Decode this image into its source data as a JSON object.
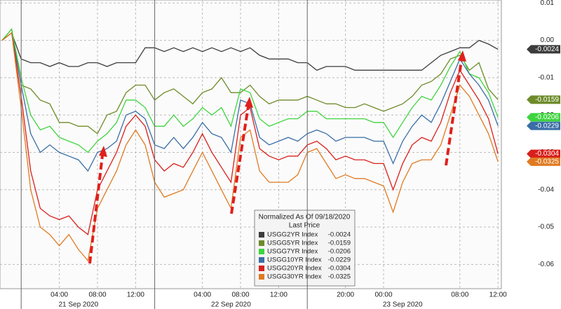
{
  "chart_data": {
    "type": "line",
    "categories": [
      null,
      null,
      null,
      null,
      null,
      null,
      "04:00",
      null,
      null,
      null,
      "08:00",
      null,
      null,
      null,
      "12:00",
      null,
      null,
      null,
      null,
      null,
      null,
      "04:00",
      null,
      null,
      null,
      "08:00",
      null,
      null,
      null,
      "12:00",
      null,
      null,
      null,
      null,
      null,
      null,
      "20:00",
      null,
      null,
      null,
      "00:00",
      null,
      null,
      null,
      null,
      null,
      null,
      null,
      "08:00",
      null,
      null,
      null,
      "12:00"
    ],
    "dates": [
      null,
      null,
      null,
      null,
      null,
      null,
      null,
      null,
      "21 Sep 2020",
      null,
      null,
      null,
      null,
      null,
      null,
      null,
      null,
      null,
      null,
      null,
      null,
      null,
      null,
      null,
      "22 Sep 2020",
      null,
      null,
      null,
      null,
      null,
      null,
      null,
      null,
      null,
      null,
      null,
      null,
      null,
      null,
      null,
      null,
      null,
      "23 Sep 2020",
      null,
      null,
      null,
      null,
      null,
      null,
      null,
      null,
      null,
      null
    ],
    "ylim": [
      -0.0665,
      0.0108
    ],
    "yticks": [
      0.01,
      {
        "value": 0,
        "label": "0.00"
      },
      -0.01,
      -0.02,
      -0.03,
      -0.04,
      -0.05,
      -0.06
    ],
    "grid": true,
    "legend_title": "Normalized As Of 09/18/2020",
    "legend_subtitle": "Last Price",
    "series": [
      {
        "name": "USGG2YR Index",
        "color": "#3c3c3c",
        "values": [
          0,
          0.002,
          -0.005,
          -0.006,
          -0.006,
          -0.007,
          -0.006,
          -0.007,
          -0.007,
          -0.006,
          -0.006,
          -0.007,
          -0.006,
          -0.006,
          -0.006,
          -0.002,
          -0.002,
          -0.003,
          -0.002,
          -0.003,
          -0.002,
          -0.003,
          -0.002,
          -0.003,
          -0.002,
          -0.003,
          -0.002,
          -0.004,
          -0.005,
          -0.005,
          -0.005,
          -0.006,
          -0.006,
          -0.008,
          -0.007,
          -0.007,
          -0.007,
          -0.008,
          -0.008,
          -0.008,
          -0.008,
          -0.008,
          -0.008,
          -0.008,
          -0.008,
          -0.006,
          -0.004,
          -0.003,
          -0.002,
          -0.002,
          0,
          -0.001,
          -0.0024
        ]
      },
      {
        "name": "USGG5YR Index",
        "color": "#6e8b2a",
        "values": [
          0,
          0.003,
          -0.012,
          -0.013,
          -0.016,
          -0.017,
          -0.022,
          -0.022,
          -0.023,
          -0.023,
          -0.025,
          -0.02,
          -0.019,
          -0.014,
          -0.012,
          -0.012,
          -0.016,
          -0.014,
          -0.013,
          -0.015,
          -0.017,
          -0.014,
          -0.013,
          -0.01,
          -0.014,
          -0.014,
          -0.012,
          -0.015,
          -0.017,
          -0.016,
          -0.016,
          -0.016,
          -0.015,
          -0.016,
          -0.017,
          -0.017,
          -0.018,
          -0.018,
          -0.017,
          -0.018,
          -0.019,
          -0.018,
          -0.017,
          -0.015,
          -0.012,
          -0.011,
          -0.009,
          -0.005,
          -0.004,
          -0.008,
          -0.006,
          -0.013,
          -0.0159
        ]
      },
      {
        "name": "USGG7YR Index",
        "color": "#3ed43e",
        "values": [
          0,
          0.003,
          -0.01,
          -0.02,
          -0.024,
          -0.023,
          -0.026,
          -0.027,
          -0.028,
          -0.03,
          -0.027,
          -0.025,
          -0.022,
          -0.016,
          -0.016,
          -0.018,
          -0.023,
          -0.023,
          -0.02,
          -0.023,
          -0.021,
          -0.018,
          -0.02,
          -0.018,
          -0.023,
          -0.013,
          -0.014,
          -0.021,
          -0.023,
          -0.022,
          -0.021,
          -0.021,
          -0.019,
          -0.019,
          -0.021,
          -0.021,
          -0.021,
          -0.021,
          -0.021,
          -0.022,
          -0.022,
          -0.026,
          -0.022,
          -0.018,
          -0.015,
          -0.016,
          -0.012,
          -0.007,
          -0.003,
          -0.009,
          -0.01,
          -0.014,
          -0.0206
        ]
      },
      {
        "name": "USGG10YR Index",
        "color": "#3a6ea5",
        "values": [
          0,
          0.002,
          -0.012,
          -0.025,
          -0.03,
          -0.028,
          -0.03,
          -0.031,
          -0.032,
          -0.035,
          -0.03,
          -0.029,
          -0.027,
          -0.02,
          -0.019,
          -0.021,
          -0.028,
          -0.029,
          -0.026,
          -0.029,
          -0.026,
          -0.022,
          -0.025,
          -0.026,
          -0.03,
          -0.016,
          -0.017,
          -0.026,
          -0.028,
          -0.027,
          -0.026,
          -0.027,
          -0.025,
          -0.024,
          -0.025,
          -0.027,
          -0.026,
          -0.026,
          -0.026,
          -0.027,
          -0.027,
          -0.033,
          -0.027,
          -0.023,
          -0.02,
          -0.022,
          -0.017,
          -0.011,
          -0.005,
          -0.009,
          -0.012,
          -0.016,
          -0.0229
        ]
      },
      {
        "name": "USGG20YR Index",
        "color": "#d8201c",
        "values": [
          0,
          0.002,
          -0.015,
          -0.035,
          -0.045,
          -0.047,
          -0.048,
          -0.047,
          -0.05,
          -0.052,
          -0.04,
          -0.035,
          -0.03,
          -0.023,
          -0.02,
          -0.023,
          -0.032,
          -0.035,
          -0.033,
          -0.034,
          -0.03,
          -0.025,
          -0.03,
          -0.034,
          -0.038,
          -0.02,
          -0.018,
          -0.029,
          -0.031,
          -0.032,
          -0.031,
          -0.031,
          -0.028,
          -0.027,
          -0.029,
          -0.032,
          -0.031,
          -0.032,
          -0.032,
          -0.033,
          -0.033,
          -0.04,
          -0.033,
          -0.028,
          -0.026,
          -0.027,
          -0.022,
          -0.014,
          -0.008,
          -0.012,
          -0.016,
          -0.021,
          -0.0304
        ]
      },
      {
        "name": "USGG30YR Index",
        "color": "#e07a22",
        "values": [
          0,
          0.002,
          -0.018,
          -0.04,
          -0.05,
          -0.052,
          -0.055,
          -0.052,
          -0.056,
          -0.059,
          -0.045,
          -0.04,
          -0.035,
          -0.028,
          -0.024,
          -0.028,
          -0.038,
          -0.042,
          -0.041,
          -0.04,
          -0.035,
          -0.03,
          -0.035,
          -0.04,
          -0.045,
          -0.026,
          -0.024,
          -0.035,
          -0.038,
          -0.038,
          -0.038,
          -0.036,
          -0.03,
          -0.029,
          -0.033,
          -0.037,
          -0.036,
          -0.037,
          -0.037,
          -0.038,
          -0.039,
          -0.046,
          -0.038,
          -0.033,
          -0.032,
          -0.032,
          -0.028,
          -0.02,
          -0.012,
          -0.015,
          -0.02,
          -0.025,
          -0.0325
        ]
      }
    ]
  }
}
